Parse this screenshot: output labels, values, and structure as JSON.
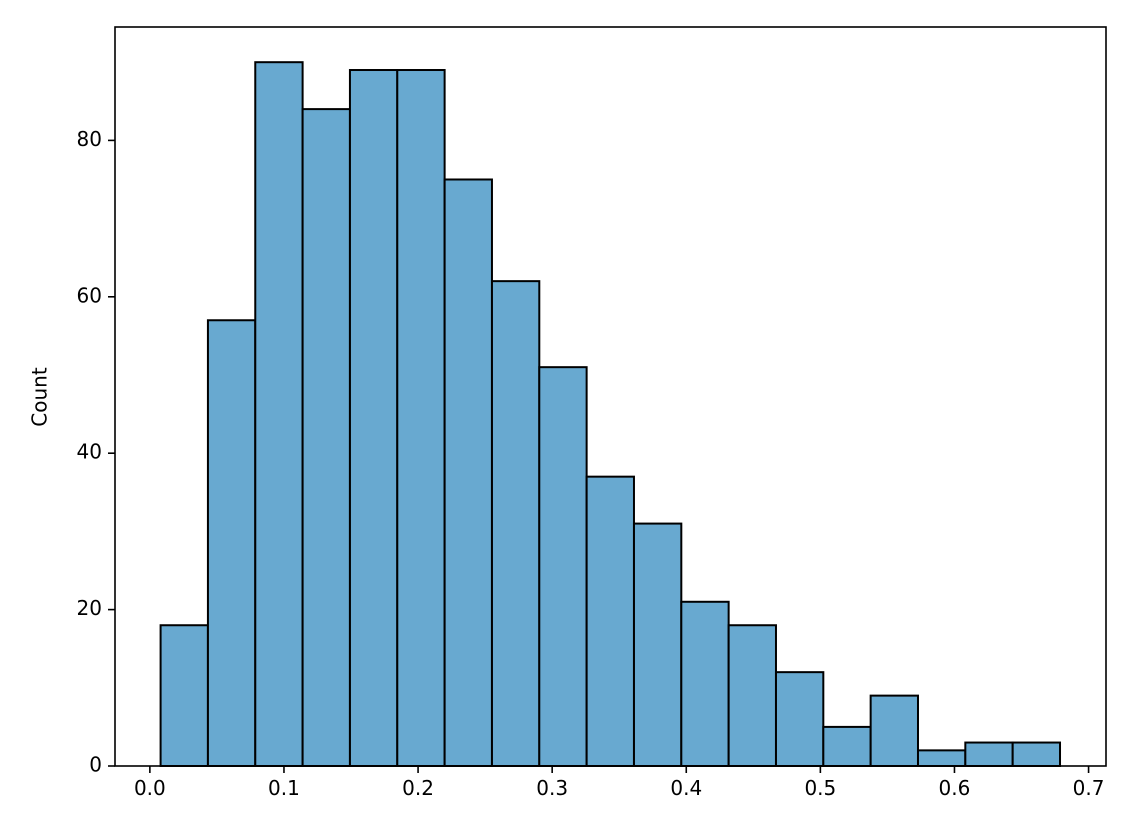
{
  "chart_data": {
    "type": "bar",
    "title": "",
    "xlabel": "",
    "ylabel": "Count",
    "xlim": [
      -0.026,
      0.713
    ],
    "ylim": [
      0,
      94.5
    ],
    "bin_edges": [
      0.008,
      0.0433,
      0.0786,
      0.1139,
      0.1492,
      0.1845,
      0.2198,
      0.2551,
      0.2904,
      0.3257,
      0.361,
      0.3963,
      0.4316,
      0.4669,
      0.5022,
      0.5375,
      0.5728,
      0.6081,
      0.6434,
      0.6787
    ],
    "values": [
      18,
      57,
      90,
      84,
      89,
      89,
      75,
      62,
      51,
      37,
      31,
      21,
      18,
      12,
      5,
      9,
      2,
      3,
      3
    ],
    "xticks": [
      0.0,
      0.1,
      0.2,
      0.3,
      0.4,
      0.5,
      0.6,
      0.7
    ],
    "xtick_labels": [
      "0.0",
      "0.1",
      "0.2",
      "0.3",
      "0.4",
      "0.5",
      "0.6",
      "0.7"
    ],
    "yticks": [
      0,
      20,
      40,
      60,
      80
    ],
    "ytick_labels": [
      "0",
      "20",
      "40",
      "60",
      "80"
    ],
    "grid": false,
    "legend": "none",
    "colors": {
      "bar_fill": "#68a9d0",
      "bar_edge": "#000000",
      "axes": "#000000"
    }
  }
}
